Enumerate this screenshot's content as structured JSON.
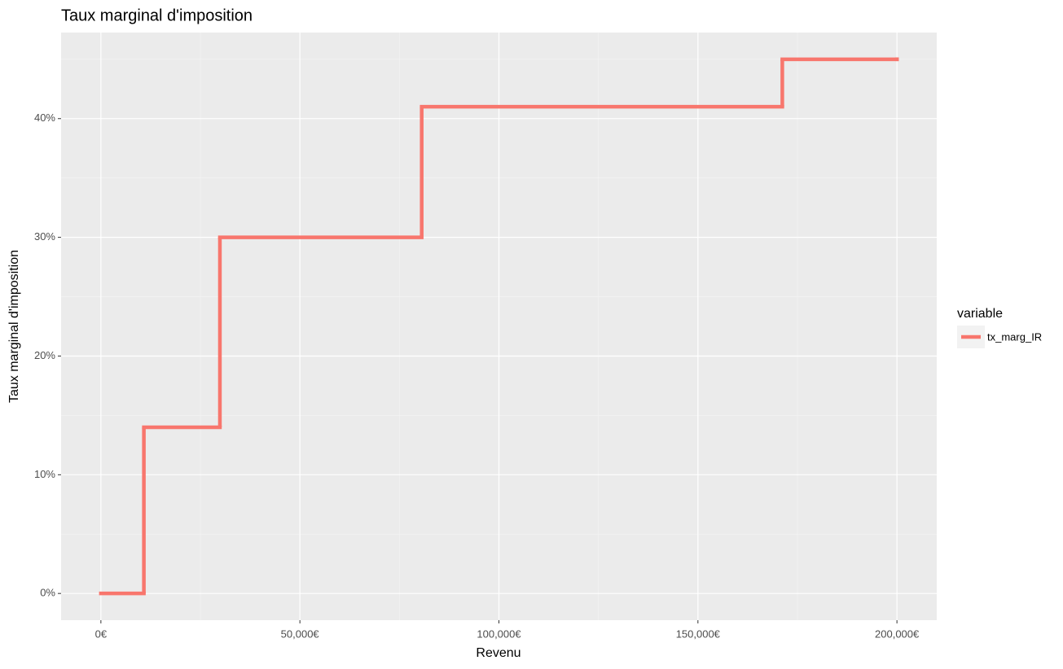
{
  "chart_data": {
    "type": "step",
    "title": "Taux marginal d'imposition",
    "x_label": "Revenu",
    "y_label": "Taux marginal d'imposition",
    "x": [
      0,
      10800,
      29900,
      80600,
      171200,
      200000
    ],
    "series": [
      {
        "name": "tx_marg_IR",
        "color": "#F8766D",
        "values": [
          0,
          14,
          30,
          41,
          45,
          45
        ]
      }
    ],
    "xlim": [
      -10000,
      210000
    ],
    "xticks": [
      {
        "value": 0,
        "label": "0€"
      },
      {
        "value": 50000,
        "label": "50,000€"
      },
      {
        "value": 100000,
        "label": "100,000€"
      },
      {
        "value": 150000,
        "label": "150,000€"
      },
      {
        "value": 200000,
        "label": "200,000€"
      }
    ],
    "xminor": [
      25000,
      75000,
      125000,
      175000
    ],
    "ylim": [
      -2.25,
      47.25
    ],
    "yticks": [
      {
        "value": 0,
        "label": "0%"
      },
      {
        "value": 10,
        "label": "10%"
      },
      {
        "value": 20,
        "label": "20%"
      },
      {
        "value": 30,
        "label": "30%"
      },
      {
        "value": 40,
        "label": "40%"
      }
    ],
    "yminor": [
      5,
      15,
      25,
      35,
      45
    ],
    "grid": true,
    "legend_title": "variable",
    "legend": "right"
  }
}
